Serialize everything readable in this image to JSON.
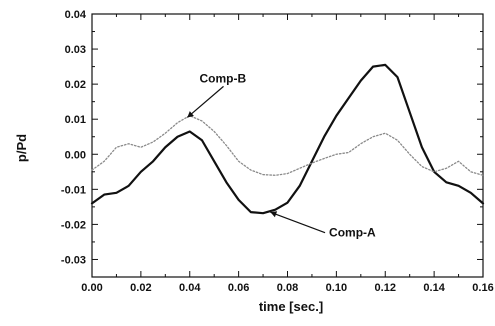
{
  "chart_data": {
    "type": "line",
    "title": "",
    "xlabel": "time [sec.]",
    "ylabel": "p/Pd",
    "xlim": [
      0.0,
      0.16
    ],
    "ylim": [
      -0.035,
      0.04
    ],
    "x_ticks": [
      "0.00",
      "0.02",
      "0.04",
      "0.06",
      "0.08",
      "0.10",
      "0.12",
      "0.14",
      "0.16"
    ],
    "y_ticks": [
      "0.04",
      "0.03",
      "0.02",
      "0.01",
      "0.00",
      "-0.01",
      "-0.02",
      "-0.03"
    ],
    "grid": false,
    "legend": "none",
    "series": [
      {
        "name": "Comp-A",
        "color": "#111111",
        "style": "solid-thick",
        "points": [
          [
            0.0,
            -0.014
          ],
          [
            0.005,
            -0.0115
          ],
          [
            0.01,
            -0.011
          ],
          [
            0.015,
            -0.009
          ],
          [
            0.02,
            -0.005
          ],
          [
            0.025,
            -0.002
          ],
          [
            0.03,
            0.002
          ],
          [
            0.035,
            0.005
          ],
          [
            0.04,
            0.0065
          ],
          [
            0.045,
            0.004
          ],
          [
            0.05,
            -0.002
          ],
          [
            0.055,
            -0.008
          ],
          [
            0.06,
            -0.013
          ],
          [
            0.065,
            -0.0165
          ],
          [
            0.07,
            -0.0168
          ],
          [
            0.075,
            -0.0158
          ],
          [
            0.08,
            -0.0138
          ],
          [
            0.085,
            -0.009
          ],
          [
            0.09,
            -0.002
          ],
          [
            0.095,
            0.005
          ],
          [
            0.1,
            0.011
          ],
          [
            0.105,
            0.016
          ],
          [
            0.11,
            0.021
          ],
          [
            0.115,
            0.025
          ],
          [
            0.12,
            0.0255
          ],
          [
            0.125,
            0.022
          ],
          [
            0.13,
            0.012
          ],
          [
            0.135,
            0.002
          ],
          [
            0.14,
            -0.005
          ],
          [
            0.145,
            -0.008
          ],
          [
            0.15,
            -0.009
          ],
          [
            0.155,
            -0.011
          ],
          [
            0.16,
            -0.014
          ]
        ]
      },
      {
        "name": "Comp-B",
        "color": "#8a8a8a",
        "style": "dotted-thin",
        "points": [
          [
            0.0,
            -0.0045
          ],
          [
            0.005,
            -0.002
          ],
          [
            0.01,
            0.002
          ],
          [
            0.015,
            0.003
          ],
          [
            0.02,
            0.002
          ],
          [
            0.025,
            0.0035
          ],
          [
            0.03,
            0.006
          ],
          [
            0.035,
            0.009
          ],
          [
            0.04,
            0.011
          ],
          [
            0.045,
            0.0095
          ],
          [
            0.05,
            0.0065
          ],
          [
            0.055,
            0.0025
          ],
          [
            0.06,
            -0.002
          ],
          [
            0.065,
            -0.0045
          ],
          [
            0.07,
            -0.0058
          ],
          [
            0.075,
            -0.006
          ],
          [
            0.08,
            -0.0055
          ],
          [
            0.085,
            -0.004
          ],
          [
            0.09,
            -0.0025
          ],
          [
            0.095,
            -0.0012
          ],
          [
            0.1,
            0.0
          ],
          [
            0.105,
            0.0005
          ],
          [
            0.11,
            0.003
          ],
          [
            0.115,
            0.005
          ],
          [
            0.12,
            0.006
          ],
          [
            0.125,
            0.004
          ],
          [
            0.13,
            0.0
          ],
          [
            0.135,
            -0.0035
          ],
          [
            0.14,
            -0.005
          ],
          [
            0.145,
            -0.004
          ],
          [
            0.15,
            -0.002
          ],
          [
            0.155,
            -0.005
          ],
          [
            0.16,
            -0.006
          ]
        ]
      }
    ],
    "annotations": [
      {
        "text": "Comp-B",
        "target_series": "Comp-B",
        "target": [
          0.039,
          0.0105
        ],
        "label_anchor": [
          0.044,
          0.0205
        ]
      },
      {
        "text": "Comp-A",
        "target_series": "Comp-A",
        "target": [
          0.073,
          -0.0165
        ],
        "label_anchor": [
          0.097,
          -0.0235
        ]
      }
    ]
  }
}
